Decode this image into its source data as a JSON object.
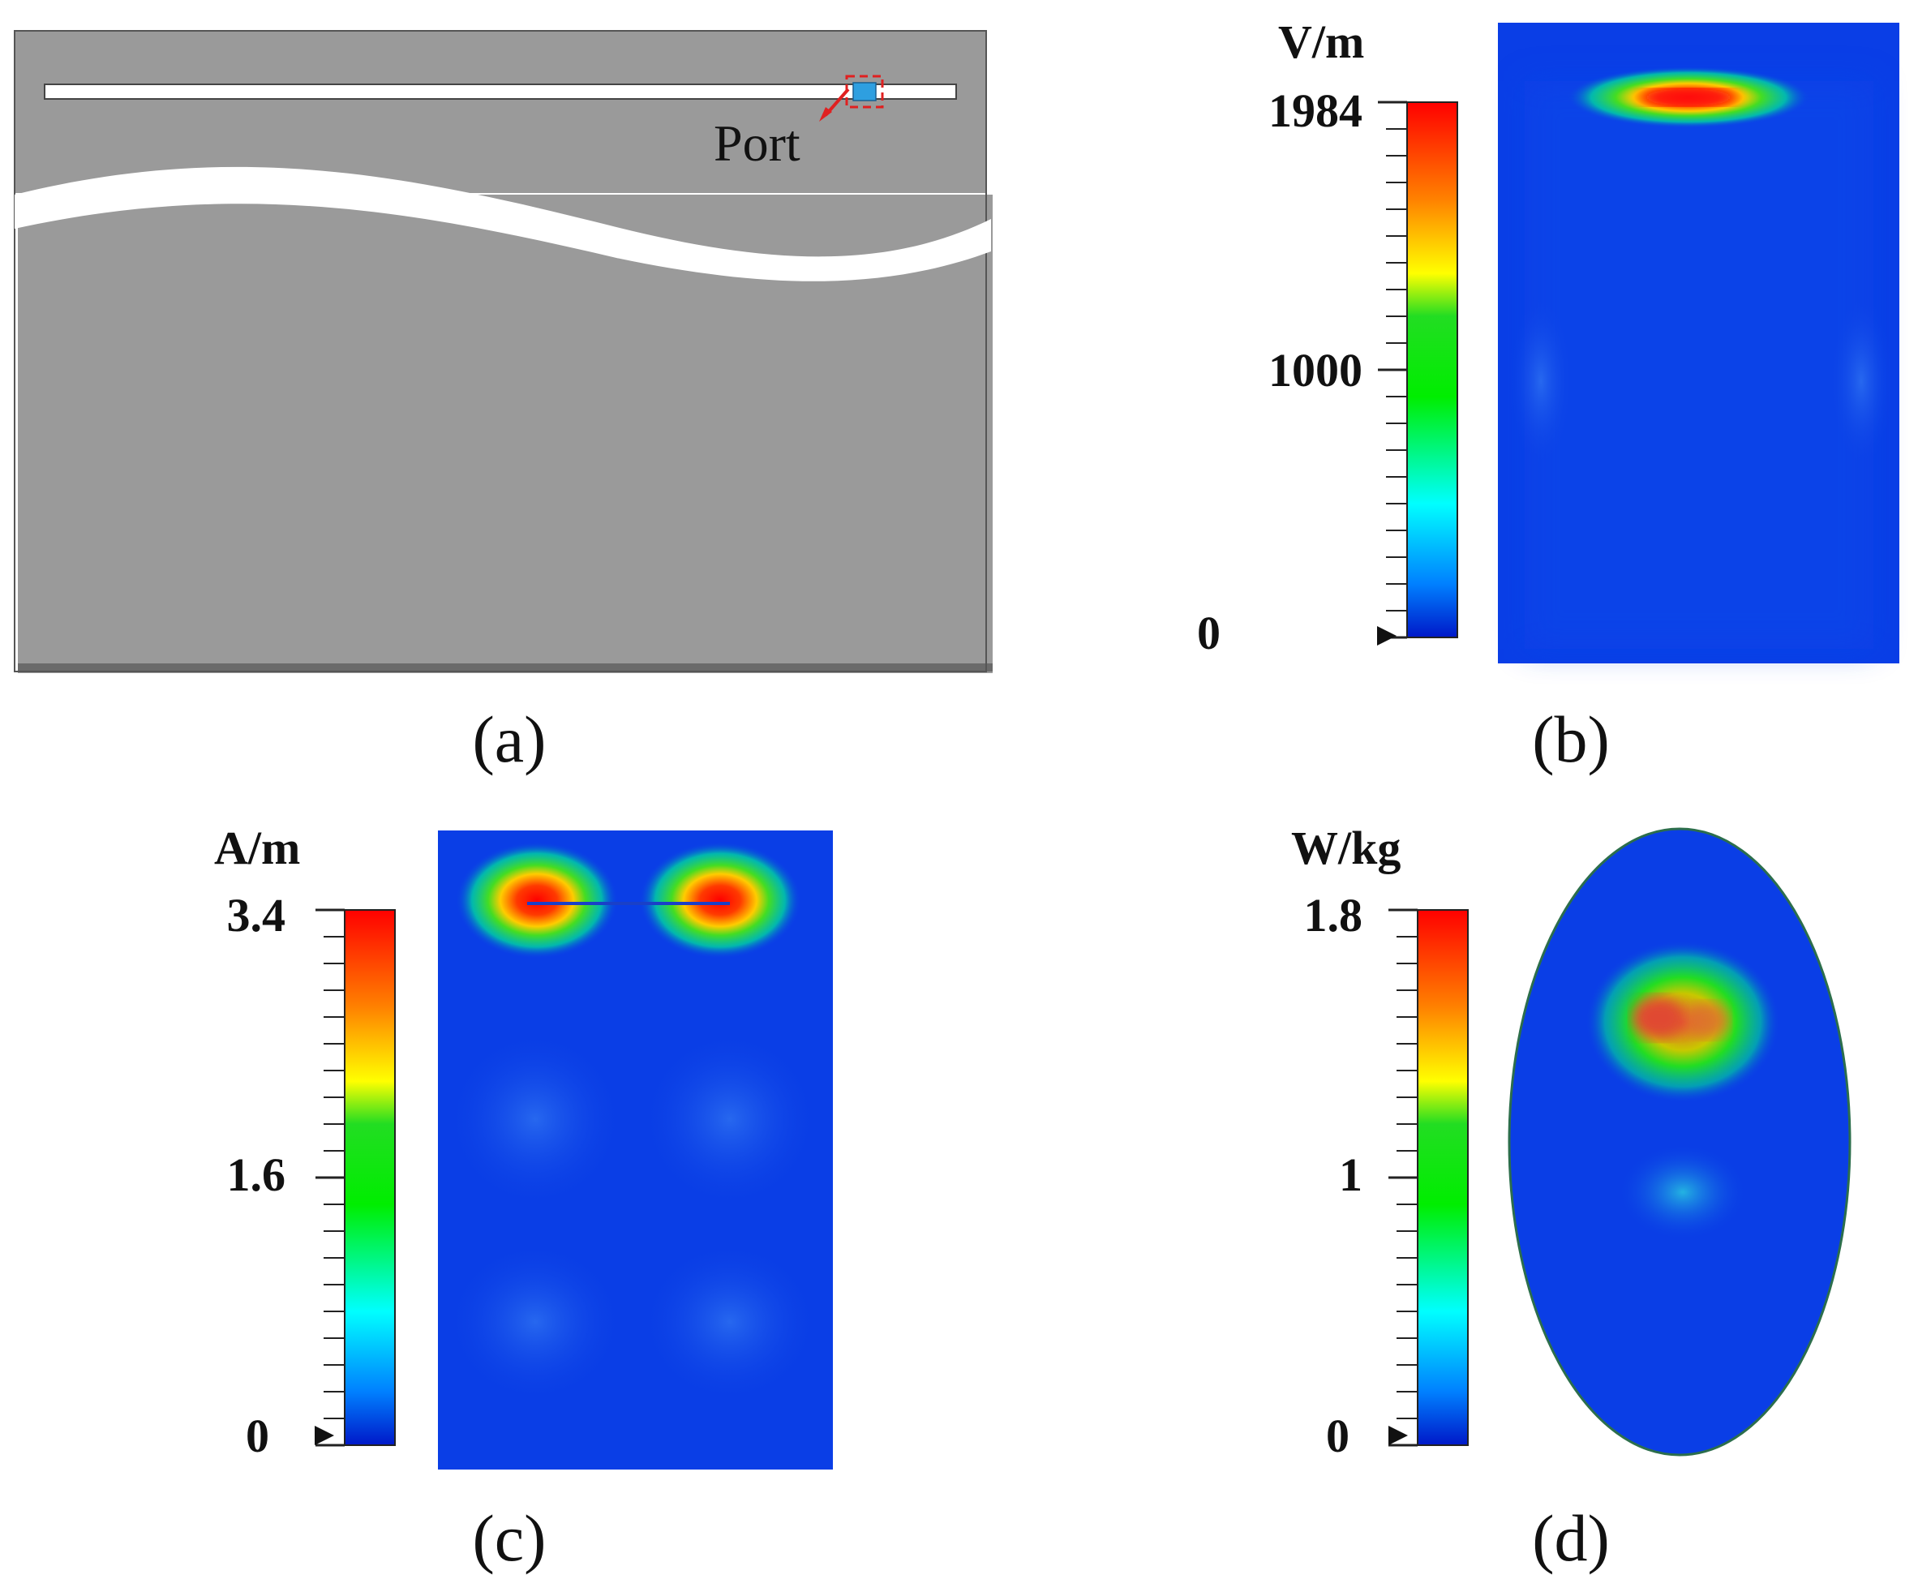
{
  "panels": {
    "a": {
      "caption": "(a)",
      "port_label": "Port",
      "colors": {
        "substrate": "#999999",
        "gap": "#ffffff",
        "port": "#2e9fe0",
        "marker": "#e02020"
      }
    },
    "b": {
      "caption": "(b)",
      "unit": "V/m",
      "ticks": [
        "1984",
        "1000",
        "0"
      ]
    },
    "c": {
      "caption": "(c)",
      "unit": "A/m",
      "ticks": [
        "3.4",
        "1.6",
        "0"
      ]
    },
    "d": {
      "caption": "(d)",
      "unit": "W/kg",
      "ticks": [
        "1.8",
        "1",
        "0"
      ]
    }
  },
  "colormap": [
    "#ff0000",
    "#ff8000",
    "#ffff00",
    "#00e000",
    "#00ffff",
    "#0040ff",
    "#0020c0"
  ],
  "background_field_color": "#0a3ee6"
}
